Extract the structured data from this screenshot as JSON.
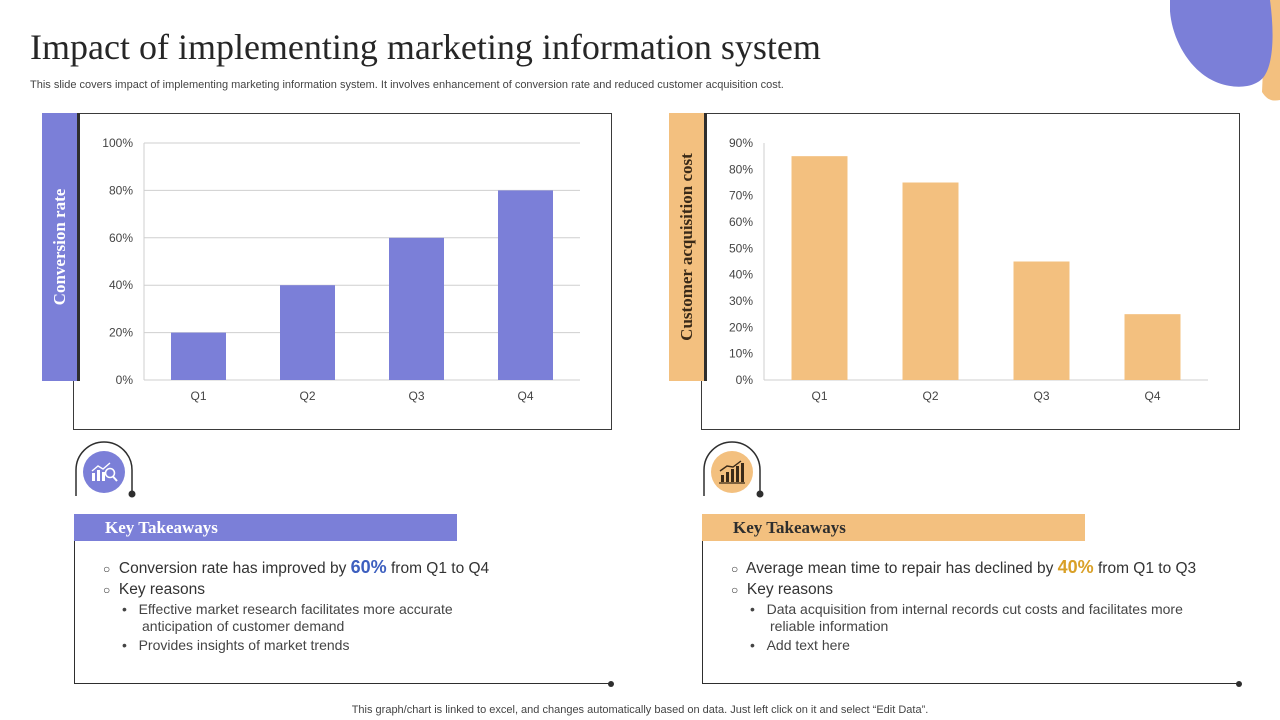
{
  "title": "Impact of implementing marketing information system",
  "subtitle": "This slide covers impact of implementing marketing information system. It involves enhancement of conversion rate and reduced customer acquisition cost.",
  "colors": {
    "accent_purple": "#7b7fd8",
    "accent_orange": "#f3c07f",
    "highlight_gold": "#d9a027",
    "highlight_blue": "#3d5fbf"
  },
  "chart_data": [
    {
      "type": "bar",
      "title": "",
      "ylabel": "Conversion rate",
      "xlabel": "",
      "categories": [
        "Q1",
        "Q2",
        "Q3",
        "Q4"
      ],
      "values": [
        20,
        40,
        60,
        80
      ],
      "ylim": [
        0,
        100
      ],
      "yticks": [
        "0%",
        "20%",
        "40%",
        "60%",
        "80%",
        "100%"
      ],
      "tick_values": [
        0,
        20,
        40,
        60,
        80,
        100
      ],
      "grid": true
    },
    {
      "type": "bar",
      "title": "",
      "ylabel": "Customer acquisition cost",
      "xlabel": "",
      "categories": [
        "Q1",
        "Q2",
        "Q3",
        "Q4"
      ],
      "values": [
        85,
        75,
        45,
        25
      ],
      "ylim": [
        0,
        90
      ],
      "yticks": [
        "0%",
        "10%",
        "20%",
        "30%",
        "40%",
        "50%",
        "60%",
        "70%",
        "80%",
        "90%"
      ],
      "tick_values": [
        0,
        10,
        20,
        30,
        40,
        50,
        60,
        70,
        80,
        90
      ],
      "grid": false
    }
  ],
  "left_panel": {
    "icon": "analytics-icon",
    "heading": "Key Takeaways",
    "line1_prefix": "Conversion rate has improved by ",
    "line1_highlight": "60%",
    "line1_suffix": " from Q1 to Q4",
    "line2": "Key reasons",
    "sub1a": "Effective market research facilitates more accurate",
    "sub1b": "anticipation of customer demand",
    "sub2": "Provides insights of market trends"
  },
  "right_panel": {
    "icon": "bar-growth-icon",
    "heading": "Key Takeaways",
    "line1_prefix": "Average mean time to repair has declined by ",
    "line1_highlight": "40%",
    "line1_suffix": " from Q1 to Q3",
    "line2": "Key reasons",
    "sub1a": "Data acquisition from internal records cut costs and facilitates more",
    "sub1b": "reliable information",
    "sub2": "Add text here"
  },
  "footer": "This graph/chart is linked to excel,  and changes automatically based on data. Just left click on it and select “Edit Data”."
}
